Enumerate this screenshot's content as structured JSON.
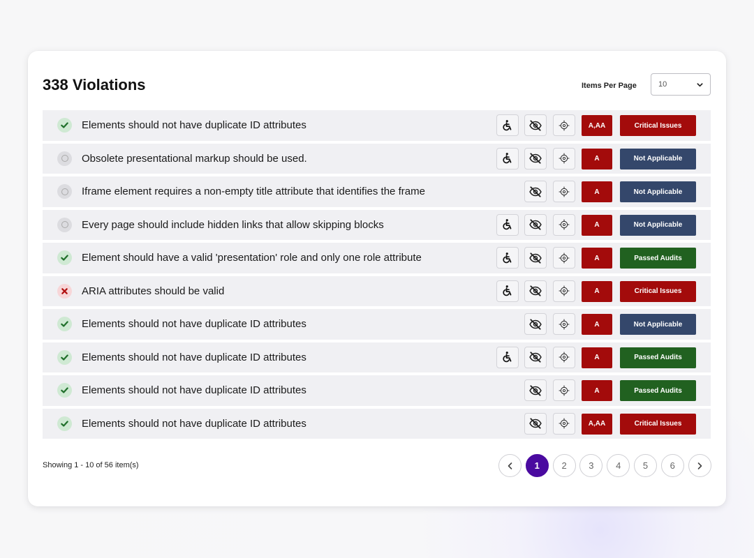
{
  "header": {
    "title": "338 Violations",
    "items_per_page_label": "Items Per Page",
    "items_per_page_value": "10"
  },
  "rows": [
    {
      "status": "passed",
      "text": "Elements should not have duplicate ID attributes",
      "accessibility_icon": true,
      "level": "A,AA",
      "badge": "Critical Issues",
      "badge_type": "critical"
    },
    {
      "status": "not-applicable",
      "text": "Obsolete presentational markup should be used.",
      "accessibility_icon": true,
      "level": "A",
      "badge": "Not Applicable",
      "badge_type": "na"
    },
    {
      "status": "not-applicable",
      "text": "Iframe element requires a non-empty title attribute that identifies the frame",
      "accessibility_icon": false,
      "level": "A",
      "badge": "Not Applicable",
      "badge_type": "na"
    },
    {
      "status": "not-applicable",
      "text": "Every page should include hidden links that allow skipping blocks",
      "accessibility_icon": true,
      "level": "A",
      "badge": "Not Applicable",
      "badge_type": "na"
    },
    {
      "status": "passed",
      "text": "Element should have a valid 'presentation' role and only one role attribute",
      "accessibility_icon": true,
      "level": "A",
      "badge": "Passed Audits",
      "badge_type": "passed"
    },
    {
      "status": "failed",
      "text": "ARIA attributes should be valid",
      "accessibility_icon": true,
      "level": "A",
      "badge": "Critical Issues",
      "badge_type": "critical"
    },
    {
      "status": "passed",
      "text": "Elements should not have duplicate ID attributes",
      "accessibility_icon": false,
      "level": "A",
      "badge": "Not Applicable",
      "badge_type": "na"
    },
    {
      "status": "passed",
      "text": "Elements should not have duplicate ID attributes",
      "accessibility_icon": true,
      "level": "A",
      "badge": "Passed Audits",
      "badge_type": "passed"
    },
    {
      "status": "passed",
      "text": "Elements should not have duplicate ID attributes",
      "accessibility_icon": false,
      "level": "A",
      "badge": "Passed Audits",
      "badge_type": "passed"
    },
    {
      "status": "passed",
      "text": "Elements should not have duplicate ID attributes",
      "accessibility_icon": false,
      "level": "A,AA",
      "badge": "Critical Issues",
      "badge_type": "critical"
    }
  ],
  "footer": {
    "showing_text": "Showing 1 - 10 of 56 item(s)",
    "pages": [
      "1",
      "2",
      "3",
      "4",
      "5",
      "6"
    ],
    "current_page": "1"
  },
  "icons": {
    "status_passed": "check-icon",
    "status_na": "circle-icon",
    "status_failed": "x-icon",
    "accessibility": "accessibility-icon",
    "hide": "eye-off-icon",
    "target": "crosshair-icon"
  },
  "colors": {
    "critical": "#a30b0b",
    "not_applicable": "#34476b",
    "passed": "#216120",
    "active_page": "#4a0aa0"
  }
}
